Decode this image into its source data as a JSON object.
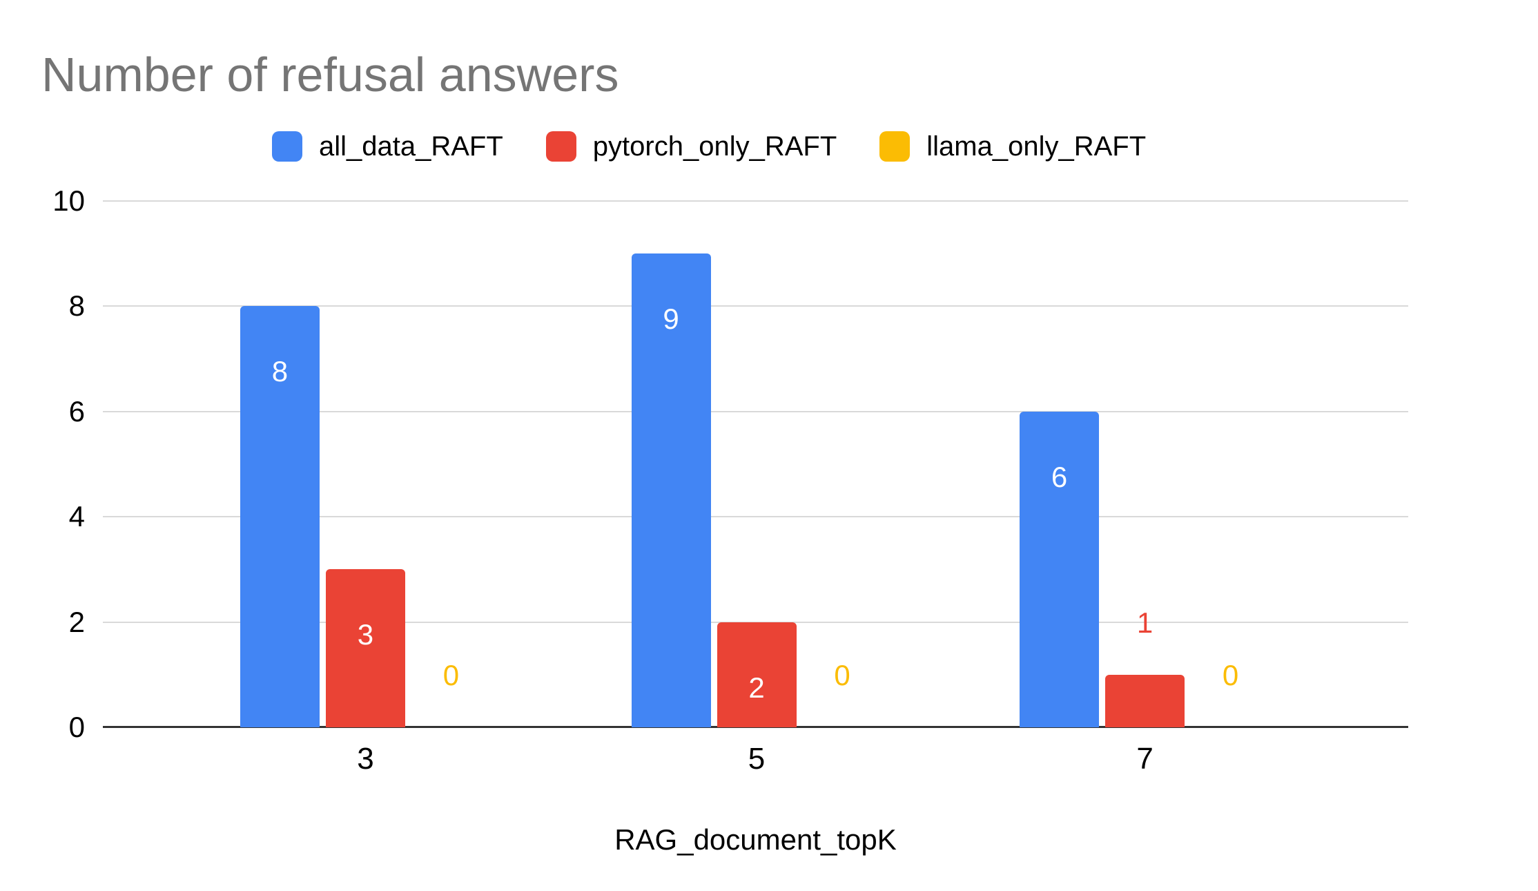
{
  "chart_data": {
    "type": "bar",
    "title": "Number of refusal answers",
    "categories": [
      "3",
      "5",
      "7"
    ],
    "series": [
      {
        "name": "all_data_RAFT",
        "color": "#4285F4",
        "values": [
          8,
          9,
          6
        ]
      },
      {
        "name": "pytorch_only_RAFT",
        "color": "#EA4335",
        "values": [
          3,
          2,
          1
        ]
      },
      {
        "name": "llama_only_RAFT",
        "color": "#FBBC04",
        "values": [
          0,
          0,
          0
        ]
      }
    ],
    "xlabel": "RAG_document_topK",
    "ylabel": "",
    "ylim": [
      0,
      10
    ],
    "yticks": [
      0,
      2,
      4,
      6,
      8,
      10
    ],
    "grid": true,
    "legend_position": "top",
    "value_labels_inside_color": "#ffffff"
  },
  "colors": {
    "title_text": "#757575",
    "axis_text": "#000000",
    "gridline": "#d9d9d9",
    "baseline": "#333333",
    "background": "#ffffff"
  }
}
